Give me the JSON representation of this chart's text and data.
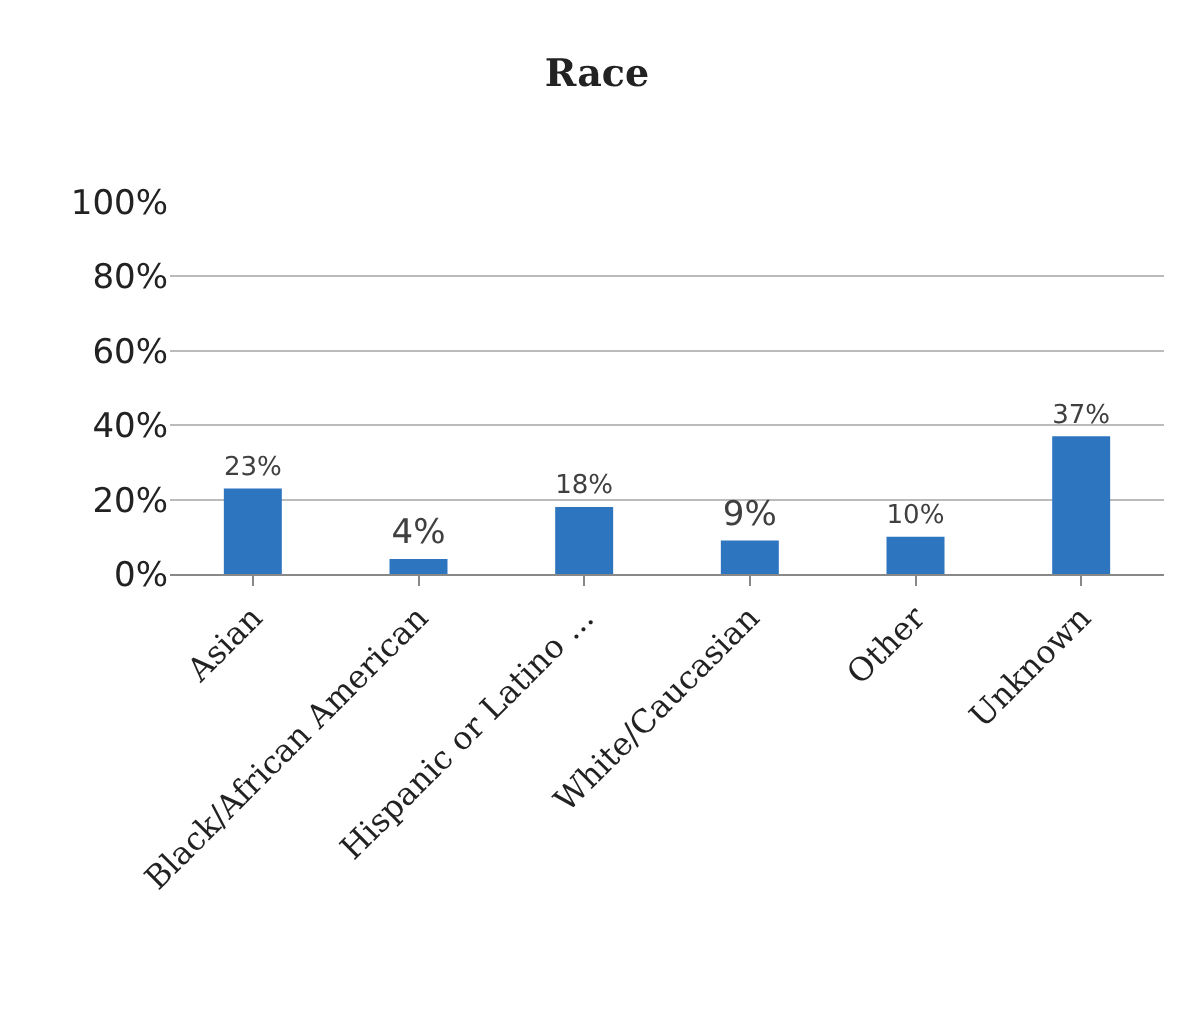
{
  "chart_data": {
    "type": "bar",
    "title": "Race",
    "categories": [
      "Asian",
      "Black/African American",
      "Hispanic or Latino ...",
      "White/Caucasian",
      "Other",
      "Unknown"
    ],
    "values": [
      23,
      4,
      18,
      9,
      10,
      37
    ],
    "value_labels": [
      "23%",
      "4%",
      "18%",
      "9%",
      "10%",
      "37%"
    ],
    "color": "#2e75c0",
    "ylim": [
      0,
      100
    ],
    "yticks": [
      {
        "value": 0,
        "label": "0%"
      },
      {
        "value": 20,
        "label": "20%"
      },
      {
        "value": 40,
        "label": "40%"
      },
      {
        "value": 60,
        "label": "60%"
      },
      {
        "value": 80,
        "label": "80%"
      },
      {
        "value": 100,
        "label": "100%"
      }
    ],
    "grid": "y"
  }
}
